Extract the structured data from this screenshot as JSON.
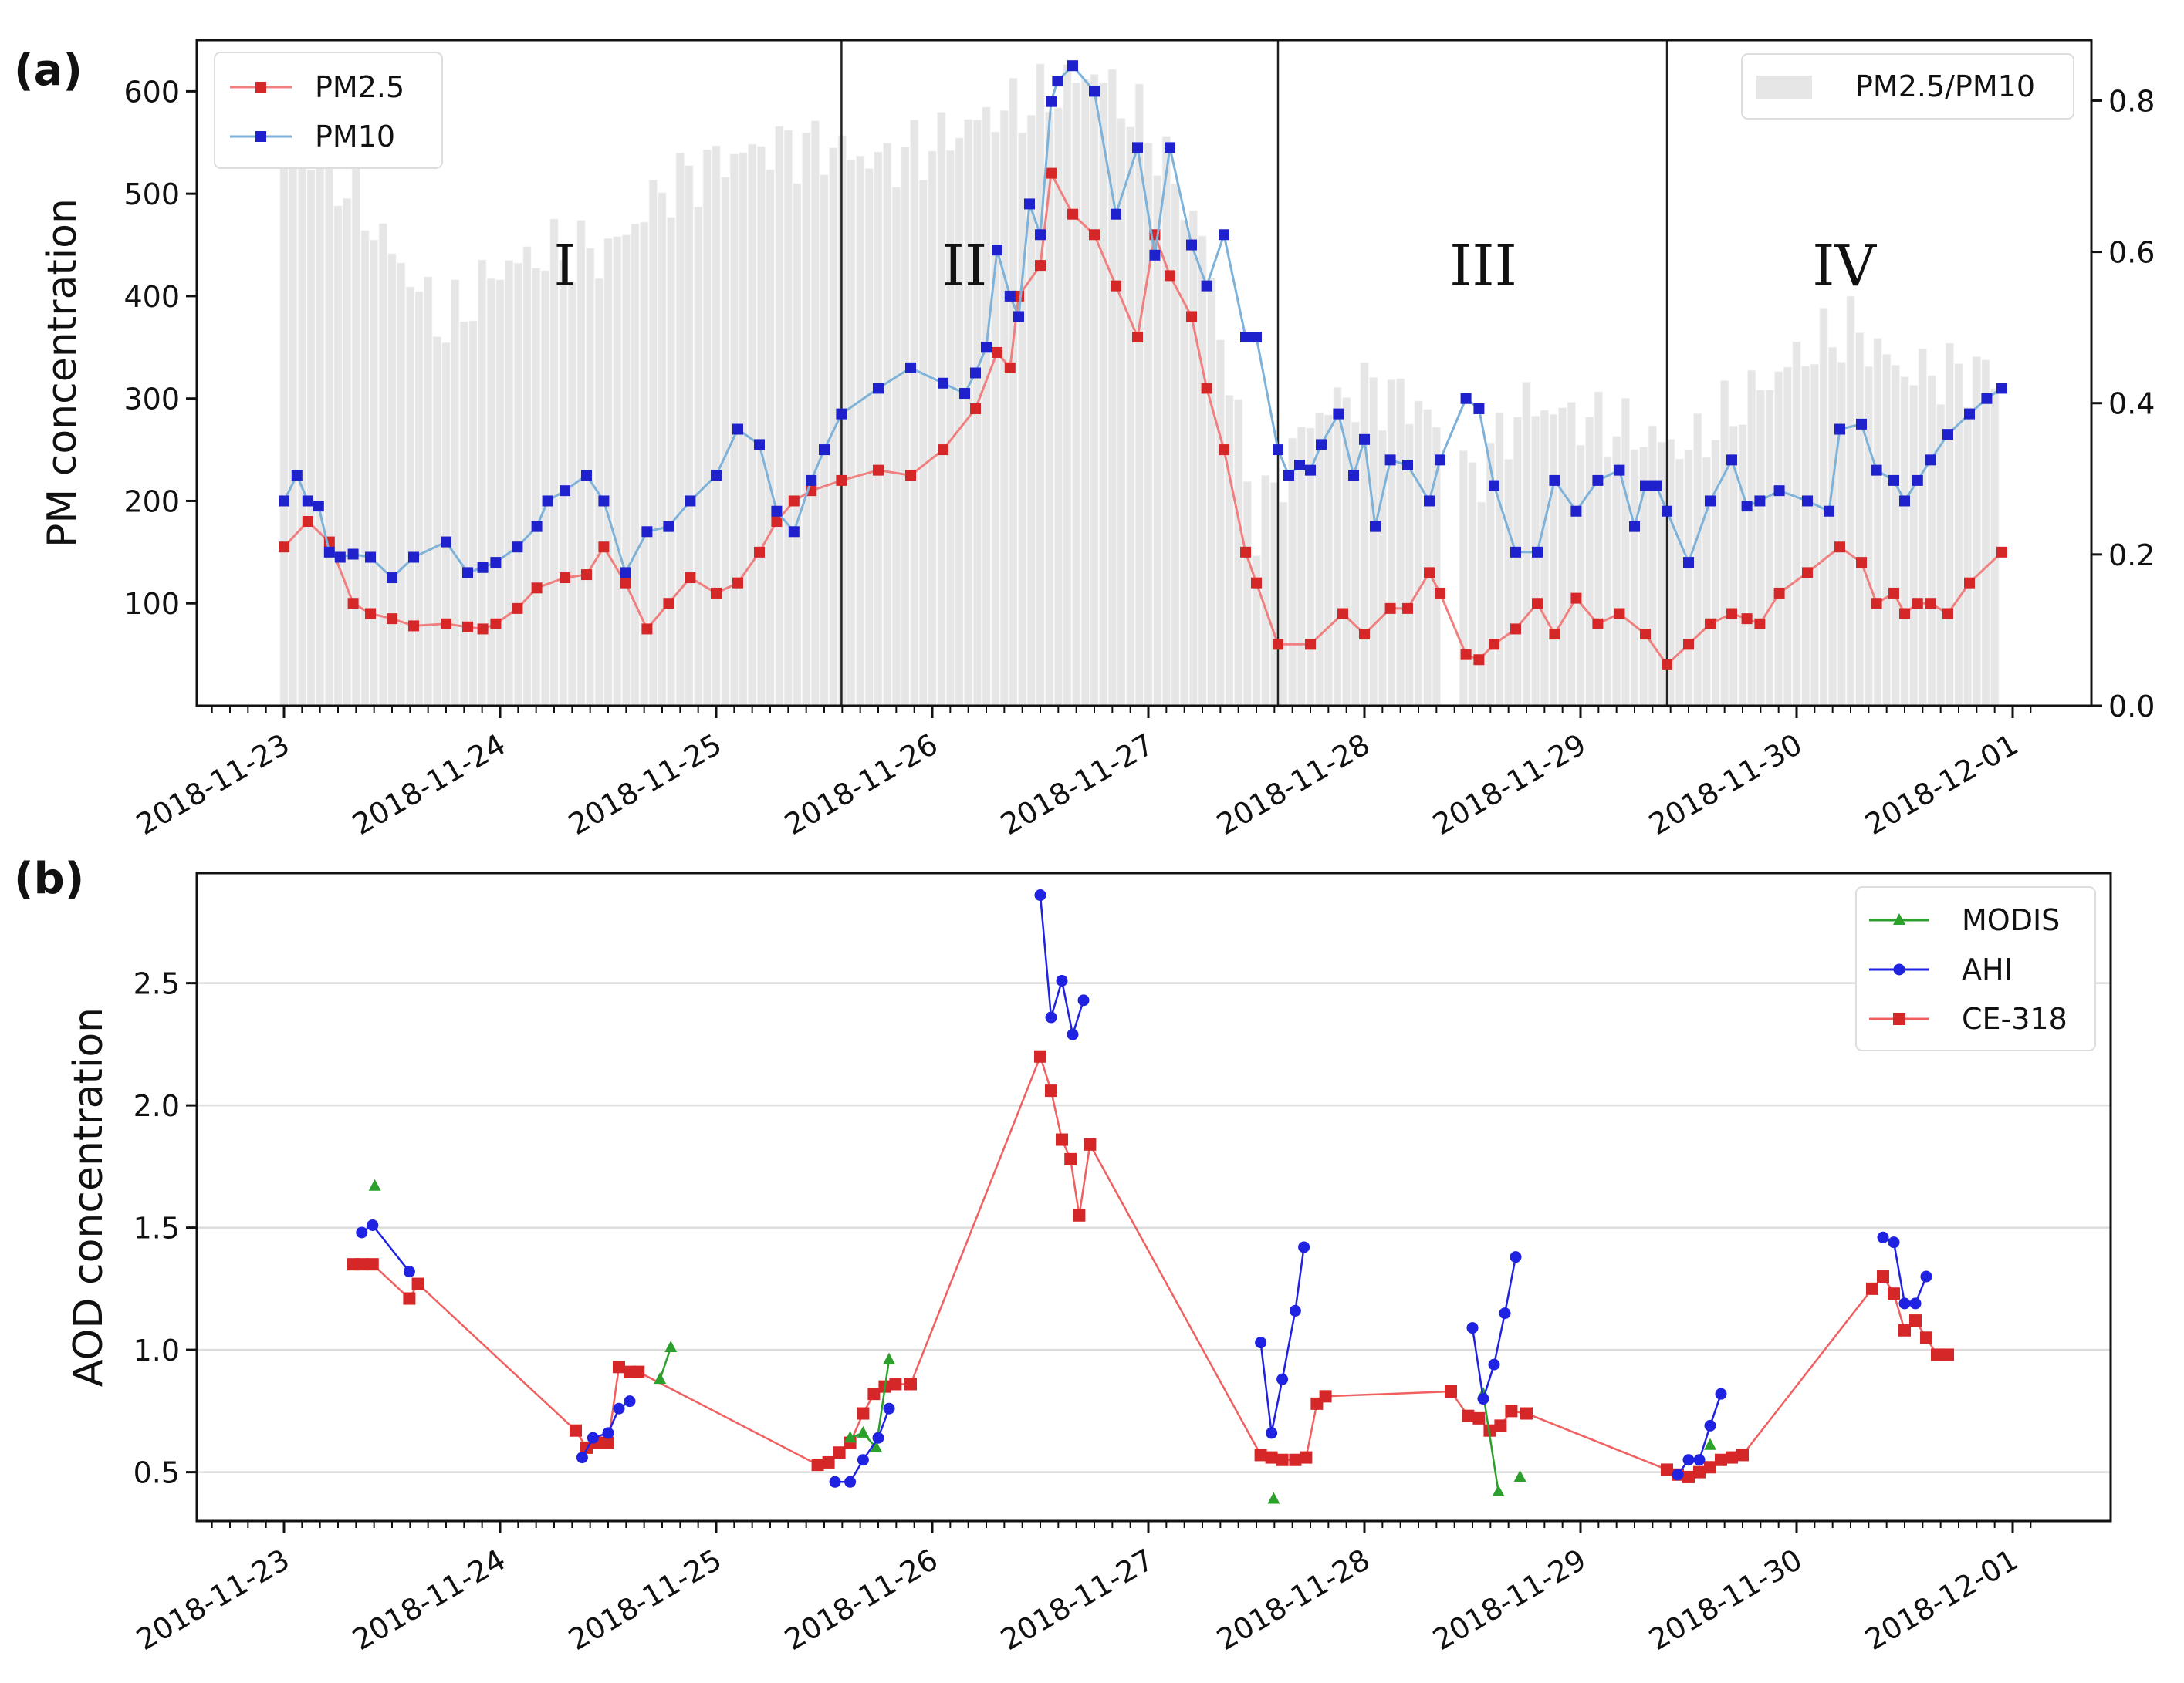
{
  "chart_data": [
    {
      "panel": "(a)",
      "type": "line",
      "ylabel": "PM concentration",
      "ylim": [
        0,
        650
      ],
      "yticks": [
        100,
        200,
        300,
        400,
        500,
        600
      ],
      "y2lim": [
        0,
        0.88
      ],
      "y2ticks": [
        "0.0",
        "0.2",
        "0.4",
        "0.6",
        "0.8"
      ],
      "xlim_days": [
        -0.4,
        8.1
      ],
      "xticks": [
        "2018-11-23",
        "2018-11-24",
        "2018-11-25",
        "2018-11-26",
        "2018-11-27",
        "2018-11-28",
        "2018-11-29",
        "2018-11-30",
        "2018-12-01"
      ],
      "periods": [
        {
          "label": "I",
          "x": 1.3
        },
        {
          "label": "II",
          "x": 3.15
        },
        {
          "label": "III",
          "x": 5.55
        },
        {
          "label": "IV",
          "x": 7.22
        }
      ],
      "period_boundaries": [
        2.58,
        4.6,
        6.4
      ],
      "legend_left": {
        "entries": [
          "PM2.5",
          "PM10"
        ],
        "placement": "upper-left"
      },
      "legend_right": {
        "entries": [
          "PM2.5/PM10"
        ],
        "placement": "upper-right"
      },
      "ratio_bar_color": "#e6e6e6",
      "series": [
        {
          "name": "PM2.5",
          "color": "#d62728",
          "line_color": "#f08080",
          "x": [
            0.0,
            0.11,
            0.21,
            0.32,
            0.4,
            0.5,
            0.6,
            0.75,
            0.85,
            0.92,
            0.98,
            1.08,
            1.17,
            1.3,
            1.4,
            1.48,
            1.58,
            1.68,
            1.78,
            1.88,
            2.0,
            2.1,
            2.2,
            2.28,
            2.36,
            2.44,
            2.58,
            2.75,
            2.9,
            3.05,
            3.2,
            3.3,
            3.36,
            3.4,
            3.5,
            3.55,
            3.65,
            3.75,
            3.85,
            3.95,
            4.03,
            4.1,
            4.2,
            4.27,
            4.35,
            4.45,
            4.5,
            4.6,
            4.75,
            4.9,
            5.0,
            5.12,
            5.2,
            5.3,
            5.35,
            5.47,
            5.53,
            5.6,
            5.7,
            5.8,
            5.88,
            5.98,
            6.08,
            6.18,
            6.3,
            6.4,
            6.5,
            6.6,
            6.7,
            6.77,
            6.83,
            6.92,
            7.05,
            7.2,
            7.3,
            7.37,
            7.45,
            7.5,
            7.56,
            7.62,
            7.7,
            7.8,
            7.95
          ],
          "values": [
            155,
            180,
            160,
            100,
            90,
            85,
            78,
            80,
            77,
            75,
            80,
            95,
            115,
            125,
            128,
            155,
            120,
            75,
            100,
            125,
            110,
            120,
            150,
            180,
            200,
            210,
            220,
            230,
            225,
            250,
            290,
            345,
            330,
            400,
            430,
            520,
            480,
            460,
            410,
            360,
            460,
            420,
            380,
            310,
            250,
            150,
            120,
            60,
            60,
            90,
            70,
            95,
            95,
            130,
            110,
            50,
            45,
            60,
            75,
            100,
            70,
            105,
            80,
            90,
            70,
            40,
            60,
            80,
            90,
            85,
            80,
            110,
            130,
            155,
            140,
            100,
            110,
            90,
            100,
            100,
            90,
            120,
            150
          ]
        },
        {
          "name": "PM10",
          "color": "#1f22cc",
          "line_color": "#7fb2d9",
          "x": [
            0.0,
            0.06,
            0.11,
            0.16,
            0.21,
            0.26,
            0.32,
            0.4,
            0.5,
            0.6,
            0.75,
            0.85,
            0.92,
            0.98,
            1.08,
            1.17,
            1.22,
            1.3,
            1.4,
            1.48,
            1.58,
            1.68,
            1.78,
            1.88,
            2.0,
            2.1,
            2.2,
            2.28,
            2.36,
            2.44,
            2.5,
            2.58,
            2.75,
            2.9,
            3.05,
            3.15,
            3.2,
            3.25,
            3.3,
            3.36,
            3.4,
            3.45,
            3.5,
            3.55,
            3.58,
            3.65,
            3.75,
            3.85,
            3.95,
            4.03,
            4.1,
            4.2,
            4.27,
            4.35,
            4.45,
            4.5,
            4.6,
            4.65,
            4.7,
            4.75,
            4.8,
            4.88,
            4.95,
            5.0,
            5.05,
            5.12,
            5.2,
            5.3,
            5.35,
            5.47,
            5.53,
            5.6,
            5.7,
            5.8,
            5.88,
            5.98,
            6.08,
            6.18,
            6.25,
            6.3,
            6.35,
            6.4,
            6.5,
            6.6,
            6.7,
            6.77,
            6.83,
            6.92,
            7.05,
            7.15,
            7.2,
            7.3,
            7.37,
            7.45,
            7.5,
            7.56,
            7.62,
            7.7,
            7.8,
            7.88,
            7.95
          ],
          "values": [
            200,
            225,
            200,
            195,
            150,
            145,
            148,
            145,
            125,
            145,
            160,
            130,
            135,
            140,
            155,
            175,
            200,
            210,
            225,
            200,
            130,
            170,
            175,
            200,
            225,
            270,
            255,
            190,
            170,
            220,
            250,
            285,
            310,
            330,
            315,
            305,
            325,
            350,
            445,
            400,
            380,
            490,
            460,
            590,
            610,
            625,
            600,
            480,
            545,
            440,
            545,
            450,
            410,
            460,
            360,
            360,
            250,
            225,
            235,
            230,
            255,
            285,
            225,
            260,
            175,
            240,
            235,
            200,
            240,
            300,
            290,
            215,
            150,
            150,
            220,
            190,
            220,
            230,
            175,
            215,
            215,
            190,
            140,
            200,
            240,
            195,
            200,
            210,
            200,
            190,
            270,
            275,
            230,
            220,
            200,
            220,
            240,
            265,
            285,
            300,
            310
          ]
        }
      ],
      "ratio": {
        "name": "PM2.5/PM10",
        "x": [
          0.0,
          0.25,
          0.5,
          0.75,
          1.0,
          1.25,
          1.5,
          1.75,
          2.0,
          2.25,
          2.5,
          2.75,
          3.0,
          3.25,
          3.5,
          3.75,
          4.0,
          4.25,
          4.5,
          4.75,
          5.0,
          5.25,
          5.5,
          5.75,
          6.0,
          6.25,
          6.5,
          6.75,
          7.0,
          7.25,
          7.5,
          7.75,
          7.95
        ],
        "values": [
          0.78,
          0.7,
          0.6,
          0.5,
          0.58,
          0.6,
          0.6,
          0.68,
          0.72,
          0.74,
          0.74,
          0.72,
          0.74,
          0.78,
          0.8,
          0.84,
          0.76,
          0.62,
          0.24,
          0.38,
          0.42,
          0.4,
          0.3,
          0.4,
          0.38,
          0.36,
          0.34,
          0.4,
          0.46,
          0.5,
          0.44,
          0.44,
          0.44
        ],
        "gap_x": [
          5.35,
          5.45
        ]
      }
    },
    {
      "panel": "(b)",
      "type": "line",
      "ylabel": "AOD concentration",
      "ylim": [
        0.3,
        2.95
      ],
      "yticks": [
        "0.5",
        "1.0",
        "1.5",
        "2.0",
        "2.5"
      ],
      "grid": true,
      "xlim_days": [
        -0.4,
        8.1
      ],
      "xticks": [
        "2018-11-23",
        "2018-11-24",
        "2018-11-25",
        "2018-11-26",
        "2018-11-27",
        "2018-11-28",
        "2018-11-29",
        "2018-11-30",
        "2018-12-01"
      ],
      "legend": {
        "entries": [
          "MODIS",
          "AHI",
          "CE-318"
        ],
        "placement": "upper-right"
      },
      "series": [
        {
          "name": "MODIS",
          "color": "#2ca02c",
          "marker": "triangle",
          "groups": [
            {
              "x": [
                0.42
              ],
              "values": [
                1.67
              ]
            },
            {
              "x": [
                1.74,
                1.79
              ],
              "values": [
                0.88,
                1.01
              ]
            },
            {
              "x": [
                2.62,
                2.68,
                2.74,
                2.8
              ],
              "values": [
                0.64,
                0.66,
                0.6,
                0.96
              ]
            },
            {
              "x": [
                4.58
              ],
              "values": [
                0.39
              ]
            },
            {
              "x": [
                5.55,
                5.62
              ],
              "values": [
                0.82,
                0.42
              ]
            },
            {
              "x": [
                5.72
              ],
              "values": [
                0.48
              ]
            },
            {
              "x": [
                6.6
              ],
              "values": [
                0.61
              ]
            }
          ]
        },
        {
          "name": "AHI",
          "color": "#1f22e0",
          "marker": "circle",
          "groups": [
            {
              "x": [
                0.36,
                0.41,
                0.58
              ],
              "values": [
                1.48,
                1.51,
                1.32
              ]
            },
            {
              "x": [
                1.38,
                1.43,
                1.5,
                1.55,
                1.6
              ],
              "values": [
                0.56,
                0.64,
                0.66,
                0.76,
                0.79
              ]
            },
            {
              "x": [
                2.55,
                2.62,
                2.68,
                2.75,
                2.8
              ],
              "values": [
                0.46,
                0.46,
                0.55,
                0.64,
                0.76
              ]
            },
            {
              "x": [
                3.5,
                3.55,
                3.6,
                3.65,
                3.7
              ],
              "values": [
                2.86,
                2.36,
                2.51,
                2.29,
                2.43
              ]
            },
            {
              "x": [
                4.52,
                4.57,
                4.62,
                4.68,
                4.72
              ],
              "values": [
                1.03,
                0.66,
                0.88,
                1.16,
                1.42
              ]
            },
            {
              "x": [
                5.5,
                5.55,
                5.6,
                5.65,
                5.7
              ],
              "values": [
                1.09,
                0.8,
                0.94,
                1.15,
                1.38
              ]
            },
            {
              "x": [
                6.45,
                6.5,
                6.55,
                6.6,
                6.65
              ],
              "values": [
                0.49,
                0.55,
                0.55,
                0.69,
                0.82
              ]
            },
            {
              "x": [
                7.4,
                7.45,
                7.5,
                7.55,
                7.6
              ],
              "values": [
                1.46,
                1.44,
                1.19,
                1.19,
                1.3
              ]
            }
          ]
        },
        {
          "name": "CE-318",
          "color": "#d62728",
          "line_color": "#f06060",
          "marker": "square",
          "x": [
            0.32,
            0.36,
            0.41,
            0.58,
            0.62,
            1.35,
            1.4,
            1.45,
            1.5,
            1.55,
            1.6,
            1.64,
            2.47,
            2.52,
            2.57,
            2.62,
            2.68,
            2.73,
            2.78,
            2.83,
            2.9,
            3.5,
            3.55,
            3.6,
            3.64,
            3.68,
            3.73,
            4.52,
            4.57,
            4.62,
            4.68,
            4.73,
            4.78,
            4.82,
            5.4,
            5.48,
            5.53,
            5.58,
            5.63,
            5.68,
            5.75,
            6.4,
            6.45,
            6.5,
            6.55,
            6.6,
            6.65,
            6.7,
            6.75,
            7.35,
            7.4,
            7.45,
            7.5,
            7.55,
            7.6,
            7.65,
            7.7
          ],
          "values": [
            1.35,
            1.35,
            1.35,
            1.21,
            1.27,
            0.67,
            0.6,
            0.62,
            0.62,
            0.93,
            0.91,
            0.91,
            0.53,
            0.54,
            0.58,
            0.62,
            0.74,
            0.82,
            0.85,
            0.86,
            0.86,
            2.2,
            2.06,
            1.86,
            1.78,
            1.55,
            1.84,
            0.57,
            0.56,
            0.55,
            0.55,
            0.56,
            0.78,
            0.81,
            0.83,
            0.73,
            0.72,
            0.67,
            0.69,
            0.75,
            0.74,
            0.51,
            0.49,
            0.48,
            0.5,
            0.52,
            0.55,
            0.56,
            0.57,
            1.25,
            1.3,
            1.23,
            1.08,
            1.12,
            1.05,
            0.98,
            0.98
          ]
        }
      ]
    }
  ]
}
